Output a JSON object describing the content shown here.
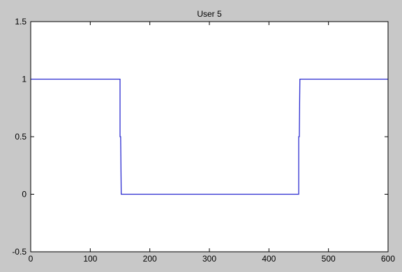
{
  "chart_data": {
    "type": "line",
    "title": "User 5",
    "xlabel": "",
    "ylabel": "",
    "xlim": [
      0,
      600
    ],
    "ylim": [
      -0.5,
      1.5
    ],
    "x_ticks": [
      0,
      100,
      200,
      300,
      400,
      500,
      600
    ],
    "x_tick_labels": [
      "0",
      "100",
      "200",
      "300",
      "400",
      "500",
      "600"
    ],
    "y_ticks": [
      -0.5,
      0,
      0.5,
      1,
      1.5
    ],
    "y_tick_labels": [
      "-0.5",
      "0",
      "0.5",
      "1",
      "1.5"
    ],
    "grid": false,
    "legend": "none",
    "series": [
      {
        "color": "#2b2bd0",
        "x": [
          0,
          150,
          150,
          151,
          152,
          450,
          450,
          451,
          452,
          600
        ],
        "y": [
          1,
          1,
          0.5,
          0.5,
          0,
          0,
          0.5,
          0.5,
          1,
          1
        ]
      }
    ]
  },
  "colors": {
    "figure_background": "#c8c8c8",
    "axes_background": "#ffffff",
    "line": "#2b2bd0"
  }
}
